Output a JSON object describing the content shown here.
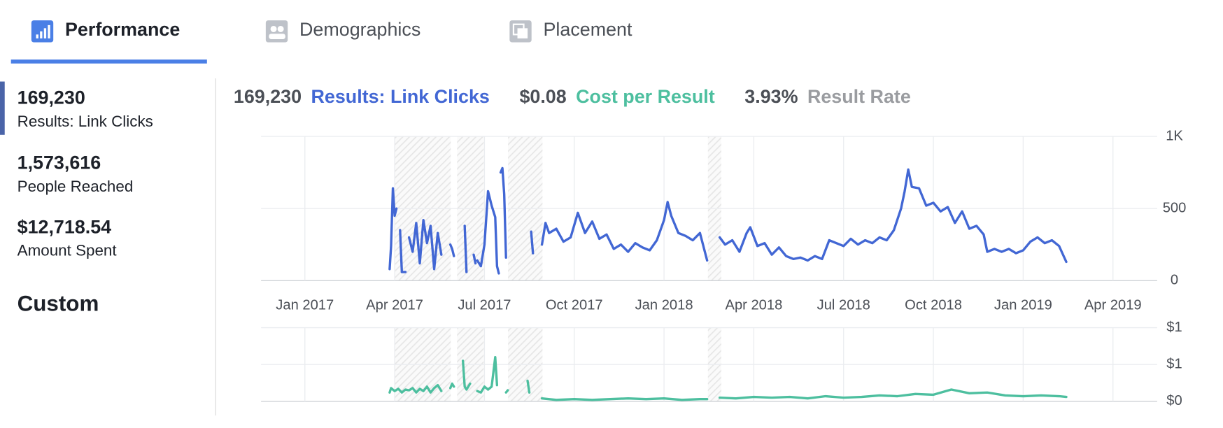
{
  "tabs": [
    "Performance",
    "Demographics",
    "Placement"
  ],
  "metrics": [
    {
      "value": "169,230",
      "label": "Results: Link Clicks"
    },
    {
      "value": "1,573,616",
      "label": "People Reached"
    },
    {
      "value": "$12,718.54",
      "label": "Amount Spent"
    }
  ],
  "custom": "Custom",
  "summary": [
    {
      "value": "169,230",
      "label": "Results: Link Clicks",
      "color": "#4267d4"
    },
    {
      "value": "$0.08",
      "label": "Cost per Result",
      "color": "#4dbf9f"
    },
    {
      "value": "3.93%",
      "label": "Result Rate",
      "color": "#9a9ca0"
    }
  ],
  "chart_data": [
    {
      "type": "line",
      "x": [
        2017.236,
        2017.24,
        2017.245,
        2017.25,
        2017.255,
        2017.26,
        2017.265,
        2017.27,
        2017.28,
        2017.285,
        2017.29,
        2017.3,
        2017.31,
        2017.32,
        2017.33,
        2017.34,
        2017.35,
        2017.36,
        2017.37,
        2017.38,
        2017.39,
        2017.405,
        2017.41,
        2017.415,
        2017.43,
        2017.445,
        2017.45,
        2017.46,
        2017.47,
        2017.475,
        2017.478,
        2017.48,
        2017.49,
        2017.5,
        2017.51,
        2017.52,
        2017.53,
        2017.535,
        2017.54,
        2017.542,
        2017.545,
        2017.55,
        2017.555,
        2017.56,
        2017.6,
        2017.63,
        2017.635,
        2017.65,
        2017.66,
        2017.67,
        2017.68,
        2017.7,
        2017.72,
        2017.74,
        2017.76,
        2017.78,
        2017.8,
        2017.82,
        2017.84,
        2017.86,
        2017.88,
        2017.9,
        2017.92,
        2017.94,
        2017.96,
        2017.98,
        2018.0,
        2018.01,
        2018.02,
        2018.04,
        2018.06,
        2018.08,
        2018.1,
        2018.12,
        2018.14,
        2018.155,
        2018.17,
        2018.19,
        2018.21,
        2018.23,
        2018.24,
        2018.26,
        2018.28,
        2018.3,
        2018.32,
        2018.34,
        2018.36,
        2018.38,
        2018.4,
        2018.42,
        2018.44,
        2018.46,
        2018.48,
        2018.5,
        2018.52,
        2018.54,
        2018.56,
        2018.58,
        2018.6,
        2018.62,
        2018.64,
        2018.66,
        2018.67,
        2018.68,
        2018.69,
        2018.71,
        2018.73,
        2018.75,
        2018.77,
        2018.79,
        2018.81,
        2018.83,
        2018.85,
        2018.87,
        2018.89,
        2018.9,
        2018.92,
        2018.94,
        2018.96,
        2018.98,
        2019.0,
        2019.02,
        2019.04,
        2019.06,
        2019.08,
        2019.1,
        2019.12
      ],
      "series": [
        {
          "color": "#4267d4",
          "values": [
            80,
            240,
            640,
            450,
            500,
            null,
            350,
            60,
            60,
            null,
            300,
            200,
            400,
            120,
            420,
            260,
            380,
            80,
            330,
            180,
            null,
            250,
            220,
            170,
            null,
            380,
            60,
            null,
            180,
            120,
            null,
            140,
            100,
            250,
            620,
            520,
            440,
            100,
            50,
            null,
            750,
            780,
            600,
            160,
            null,
            340,
            190,
            null,
            250,
            400,
            330,
            360,
            270,
            300,
            470,
            330,
            410,
            290,
            320,
            220,
            250,
            200,
            260,
            230,
            210,
            280,
            420,
            545,
            450,
            330,
            310,
            280,
            330,
            140,
            null,
            300,
            250,
            280,
            200,
            330,
            370,
            240,
            260,
            180,
            230,
            170,
            150,
            160,
            140,
            170,
            150,
            280,
            260,
            240,
            290,
            250,
            280,
            260,
            300,
            280,
            350,
            500,
            620,
            770,
            650,
            640,
            520,
            540,
            480,
            510,
            400,
            480,
            360,
            380,
            320,
            200,
            220,
            200,
            220,
            190,
            210,
            270,
            300,
            260,
            280,
            240,
            130
          ]
        }
      ],
      "xlim": [
        2016.878,
        2019.373
      ],
      "xticks": [
        {
          "value": 2017,
          "label": "Jan 2017"
        },
        {
          "value": 2017.25,
          "label": "Apr 2017"
        },
        {
          "value": 2017.5,
          "label": "Jul 2017"
        },
        {
          "value": 2017.75,
          "label": "Oct 2017"
        },
        {
          "value": 2018,
          "label": "Jan 2018"
        },
        {
          "value": 2018.25,
          "label": "Apr 2018"
        },
        {
          "value": 2018.5,
          "label": "Jul 2018"
        },
        {
          "value": 2018.75,
          "label": "Oct 2018"
        },
        {
          "value": 2019,
          "label": "Jan 2019"
        },
        {
          "value": 2019.25,
          "label": "Apr 2019"
        }
      ],
      "ylim": [
        0,
        1000
      ],
      "yticks": [
        0,
        500,
        {
          "value": 1000,
          "label": "1K"
        }
      ],
      "grid": true
    },
    {
      "type": "line",
      "x": [
        2017.236,
        2017.24,
        2017.25,
        2017.26,
        2017.27,
        2017.28,
        2017.29,
        2017.3,
        2017.31,
        2017.32,
        2017.33,
        2017.34,
        2017.35,
        2017.36,
        2017.37,
        2017.38,
        2017.39,
        2017.405,
        2017.41,
        2017.415,
        2017.43,
        2017.44,
        2017.445,
        2017.45,
        2017.46,
        2017.47,
        2017.48,
        2017.49,
        2017.5,
        2017.51,
        2017.52,
        2017.53,
        2017.535,
        2017.55,
        2017.56,
        2017.565,
        2017.6,
        2017.62,
        2017.625,
        2017.64,
        2017.66,
        2017.7,
        2017.75,
        2017.8,
        2017.85,
        2017.9,
        2017.95,
        2018.0,
        2018.05,
        2018.1,
        2018.12,
        2018.14,
        2018.155,
        2018.2,
        2018.25,
        2018.3,
        2018.35,
        2018.4,
        2018.45,
        2018.5,
        2018.55,
        2018.6,
        2018.65,
        2018.7,
        2018.75,
        2018.8,
        2018.85,
        2018.9,
        2018.95,
        2019.0,
        2019.05,
        2019.1,
        2019.12
      ],
      "series": [
        {
          "color": "#4dbf9f",
          "values": [
            0.12,
            0.18,
            0.14,
            0.17,
            0.12,
            0.16,
            0.15,
            0.18,
            0.12,
            0.17,
            0.14,
            0.2,
            0.12,
            0.18,
            0.22,
            0.14,
            null,
            0.18,
            0.24,
            0.2,
            null,
            0.55,
            0.2,
            0.16,
            0.24,
            null,
            0.14,
            0.12,
            0.2,
            0.16,
            0.2,
            0.6,
            0.22,
            null,
            0.12,
            0.15,
            null,
            0.28,
            0.12,
            null,
            0.04,
            0.02,
            0.03,
            0.02,
            0.03,
            0.04,
            0.03,
            0.04,
            0.02,
            0.03,
            0.03,
            null,
            0.05,
            0.04,
            0.06,
            0.05,
            0.06,
            0.04,
            0.07,
            0.05,
            0.06,
            0.08,
            0.07,
            0.1,
            0.09,
            0.16,
            0.11,
            0.12,
            0.08,
            0.07,
            0.08,
            0.07,
            0.06
          ]
        }
      ],
      "xlim": [
        2016.878,
        2019.373
      ],
      "xticks": [
        2017,
        2017.25,
        2017.5,
        2017.75,
        2018,
        2018.25,
        2018.5,
        2018.75,
        2019,
        2019.25
      ],
      "ylim": [
        0,
        1
      ],
      "yticks": [
        {
          "value": 0,
          "label": "$0"
        },
        {
          "value": 0.5,
          "label": "$1"
        },
        {
          "value": 1,
          "label": "$1"
        }
      ],
      "grid": true
    }
  ]
}
